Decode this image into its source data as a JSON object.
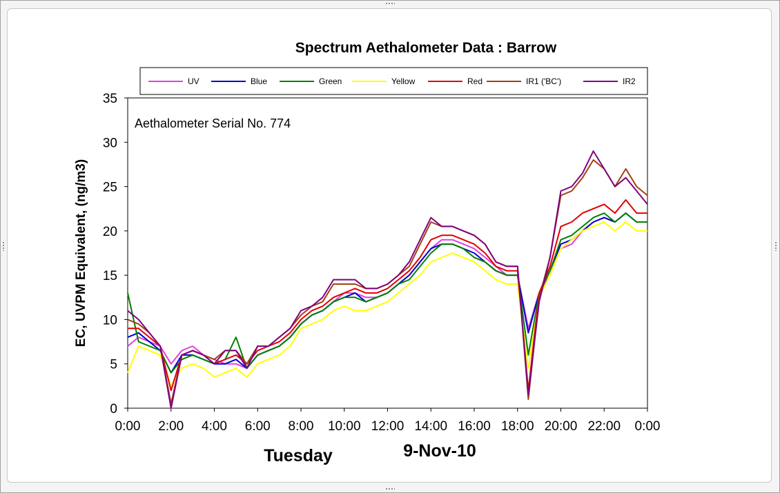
{
  "chart_data": {
    "type": "line",
    "title": "Spectrum Aethalometer Data  :  Barrow",
    "annotation": "Aethalometer  Serial No. 774",
    "ylabel": "EC, UVPM Equivalent, (ng/m3)",
    "footer_left": "Tuesday",
    "footer_right": "9-Nov-10",
    "ylim": [
      0,
      35
    ],
    "yticks": [
      "0",
      "5",
      "10",
      "15",
      "20",
      "25",
      "30",
      "35"
    ],
    "xlim": [
      0,
      24
    ],
    "xticks": [
      "0:00",
      "2:00",
      "4:00",
      "6:00",
      "8:00",
      "10:00",
      "12:00",
      "14:00",
      "16:00",
      "18:00",
      "20:00",
      "22:00",
      "0:00"
    ],
    "legend_position": "top",
    "x_hours": [
      0,
      0.5,
      1,
      1.5,
      2,
      2.5,
      3,
      3.5,
      4,
      4.5,
      5,
      5.5,
      6,
      6.5,
      7,
      7.5,
      8,
      8.5,
      9,
      9.5,
      10,
      10.5,
      11,
      11.5,
      12,
      12.5,
      13,
      13.5,
      14,
      14.5,
      15,
      15.5,
      16,
      16.5,
      17,
      17.5,
      18,
      18.5,
      19,
      19.5,
      20,
      20.5,
      21,
      21.5,
      22,
      22.5,
      23,
      23.5,
      24
    ],
    "series": [
      {
        "name": "UV",
        "color": "#e040e0",
        "values": [
          7,
          8,
          7.5,
          7,
          5,
          6.5,
          7,
          6,
          5.5,
          5,
          5,
          4.5,
          6,
          6.5,
          7,
          8,
          9.5,
          10.5,
          11,
          12,
          13,
          13,
          12.5,
          12.5,
          13,
          14,
          15,
          16.5,
          18,
          19,
          19,
          18.5,
          18,
          17,
          16,
          15,
          15,
          9,
          13,
          15,
          18,
          18.5,
          20,
          21,
          21.5,
          21,
          22,
          21,
          21
        ]
      },
      {
        "name": "Blue",
        "color": "#0000d0",
        "values": [
          8,
          8.5,
          7.5,
          6.5,
          4,
          6,
          6,
          5.5,
          5,
          5,
          5.5,
          4.5,
          6,
          6.5,
          7,
          8,
          9.5,
          10.5,
          11,
          12,
          12.5,
          13,
          12,
          12.5,
          13,
          14,
          15,
          16.5,
          18,
          18.5,
          18.5,
          18,
          17.5,
          16.5,
          15.5,
          15,
          15,
          8.5,
          13,
          15.5,
          18.5,
          19,
          20,
          21,
          21.5,
          21,
          22,
          21,
          21
        ]
      },
      {
        "name": "Green",
        "color": "#008000",
        "values": [
          13,
          7.5,
          7,
          6.5,
          4,
          5.5,
          6,
          5.5,
          5,
          5.5,
          8,
          4.5,
          6,
          6.5,
          7,
          8,
          9.5,
          10.5,
          11,
          12,
          12.5,
          12.5,
          12,
          12.5,
          13,
          14,
          14.5,
          16,
          17.5,
          18.5,
          18.5,
          18,
          17,
          16.5,
          15.5,
          15,
          15,
          6,
          13,
          15.5,
          19,
          19.5,
          20.5,
          21.5,
          22,
          21,
          22,
          21,
          21
        ]
      },
      {
        "name": "Yellow",
        "color": "#ffff00",
        "values": [
          4,
          7,
          6.5,
          6,
          2.5,
          4.5,
          5,
          4.5,
          3.5,
          4,
          4.5,
          3.5,
          5,
          5.5,
          6,
          7,
          9,
          9.5,
          10,
          11,
          11.5,
          11,
          11,
          11.5,
          12,
          13,
          14,
          15,
          16.5,
          17,
          17.5,
          17,
          16.5,
          15.5,
          14.5,
          14,
          14,
          4.5,
          12.5,
          15,
          18,
          19,
          20,
          20.5,
          21,
          20,
          21,
          20,
          20
        ]
      },
      {
        "name": "Red",
        "color": "#e00000",
        "values": [
          9,
          9,
          8,
          7,
          2,
          6,
          6.5,
          6,
          5,
          5.5,
          6,
          5,
          6.5,
          7,
          7.5,
          8.5,
          10,
          11,
          11.5,
          12.5,
          13,
          13.5,
          13,
          13,
          13.5,
          14.5,
          15.5,
          17,
          19,
          19.5,
          19.5,
          19,
          18.5,
          17.5,
          16,
          15.5,
          15.5,
          2,
          13,
          16,
          20.5,
          21,
          22,
          22.5,
          23,
          22,
          23.5,
          22,
          22
        ]
      },
      {
        "name": "IR1 ('BC')",
        "color": "#a04010",
        "values": [
          10,
          9.5,
          8.5,
          7,
          0.5,
          6,
          6.5,
          6,
          5.5,
          6.5,
          6.5,
          5,
          7,
          7,
          8,
          9,
          10.5,
          11.5,
          12,
          14,
          14,
          14,
          13.5,
          13.5,
          14,
          15,
          16,
          18.5,
          21,
          20.5,
          20.5,
          20,
          19.5,
          18.5,
          16.5,
          16,
          16,
          1,
          12.5,
          17,
          24,
          24.5,
          26,
          28,
          27,
          25,
          27,
          25,
          24
        ]
      },
      {
        "name": "IR2",
        "color": "#800080",
        "values": [
          11,
          10,
          8.5,
          7,
          0,
          6,
          6.5,
          6,
          5,
          6.5,
          6.5,
          4.5,
          7,
          7,
          8,
          9,
          11,
          11.5,
          12.5,
          14.5,
          14.5,
          14.5,
          13.5,
          13.5,
          14,
          15,
          16.5,
          19,
          21.5,
          20.5,
          20.5,
          20,
          19.5,
          18.5,
          16.5,
          16,
          16,
          1.5,
          12,
          17,
          24.5,
          25,
          26.5,
          29,
          27,
          25,
          26,
          24.5,
          23
        ]
      }
    ]
  }
}
